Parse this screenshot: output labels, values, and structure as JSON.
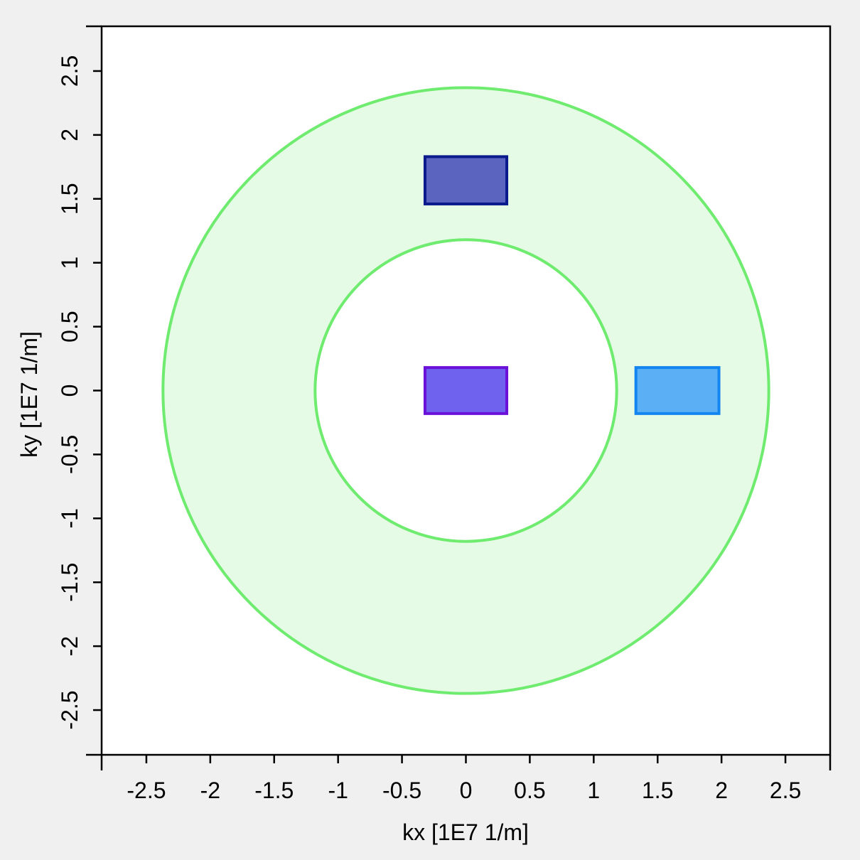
{
  "chart_data": {
    "type": "scatter",
    "xlabel": "kx [1E7 1/m]",
    "ylabel": "ky [1E7 1/m]",
    "xlim": [
      -2.85,
      2.85
    ],
    "ylim": [
      -2.85,
      2.85
    ],
    "xticks": [
      "-2.5",
      "-2",
      "-1.5",
      "-1",
      "-0.5",
      "0",
      "0.5",
      "1",
      "1.5",
      "2",
      "2.5"
    ],
    "yticks": [
      "-2.5",
      "-2",
      "-1.5",
      "-1",
      "-0.5",
      "0",
      "0.5",
      "1",
      "1.5",
      "2",
      "2.5"
    ],
    "grid": false,
    "annulus": {
      "center": [
        0,
        0
      ],
      "inner_radius": 1.18,
      "outer_radius": 2.37,
      "stroke_color": "#6fec6f",
      "fill_color": "#e5fbe5"
    },
    "rectangles": [
      {
        "x_range": [
          -0.32,
          0.32
        ],
        "y_range": [
          1.46,
          1.83
        ],
        "fill_color": "#5b64bf",
        "stroke_color": "#0a1a8c"
      },
      {
        "x_range": [
          -0.32,
          0.32
        ],
        "y_range": [
          -0.18,
          0.18
        ],
        "fill_color": "#6e62ee",
        "stroke_color": "#6a10d8"
      },
      {
        "x_range": [
          1.33,
          1.98
        ],
        "y_range": [
          -0.18,
          0.18
        ],
        "fill_color": "#5aaff5",
        "stroke_color": "#1385f0"
      }
    ]
  }
}
